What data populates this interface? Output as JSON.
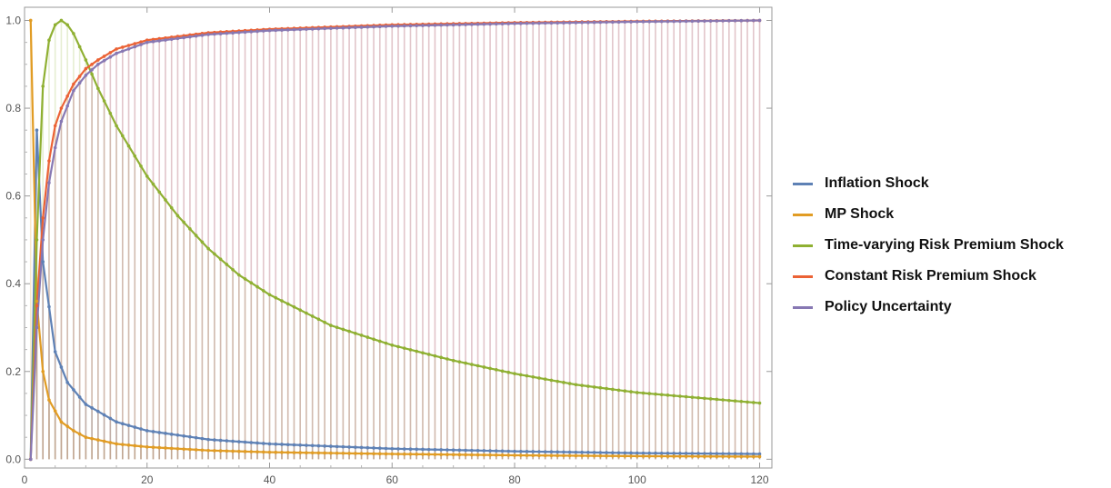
{
  "chart_data": {
    "type": "line",
    "title": "",
    "xlabel": "",
    "ylabel": "",
    "xlim": [
      0,
      122
    ],
    "ylim": [
      -0.02,
      1.03
    ],
    "x_ticks": [
      0,
      20,
      40,
      60,
      80,
      100,
      120
    ],
    "y_ticks": [
      0.0,
      0.2,
      0.4,
      0.6,
      0.8,
      1.0
    ],
    "x_tick_labels": [
      "0",
      "20",
      "40",
      "60",
      "80",
      "100",
      "120"
    ],
    "y_tick_labels": [
      "0.0",
      "0.2",
      "0.4",
      "0.6",
      "0.8",
      "1.0"
    ],
    "grid": false,
    "frame": true,
    "filling": "drop lines to 0 at every integer x",
    "legend_position": "right",
    "x": [
      1,
      120
    ],
    "series": [
      {
        "name": "Inflation Shock",
        "color": "#5e81b5",
        "points": [
          [
            1,
            0.0
          ],
          [
            2,
            0.75
          ],
          [
            3,
            0.45
          ],
          [
            5,
            0.245
          ],
          [
            7,
            0.175
          ],
          [
            10,
            0.125
          ],
          [
            15,
            0.085
          ],
          [
            20,
            0.065
          ],
          [
            30,
            0.045
          ],
          [
            40,
            0.035
          ],
          [
            60,
            0.024
          ],
          [
            80,
            0.018
          ],
          [
            100,
            0.014
          ],
          [
            120,
            0.012
          ]
        ]
      },
      {
        "name": "MP Shock",
        "color": "#e19c24",
        "points": [
          [
            1,
            1.0
          ],
          [
            2,
            0.36
          ],
          [
            3,
            0.2
          ],
          [
            4,
            0.135
          ],
          [
            6,
            0.085
          ],
          [
            8,
            0.065
          ],
          [
            10,
            0.05
          ],
          [
            15,
            0.035
          ],
          [
            20,
            0.028
          ],
          [
            30,
            0.02
          ],
          [
            40,
            0.016
          ],
          [
            60,
            0.012
          ],
          [
            80,
            0.009
          ],
          [
            100,
            0.007
          ],
          [
            120,
            0.006
          ]
        ]
      },
      {
        "name": "Time-varying Risk Premium Shock",
        "color": "#8fb032",
        "points": [
          [
            1,
            0.0
          ],
          [
            2,
            0.5
          ],
          [
            3,
            0.85
          ],
          [
            4,
            0.955
          ],
          [
            5,
            0.99
          ],
          [
            6,
            1.0
          ],
          [
            7,
            0.99
          ],
          [
            8,
            0.97
          ],
          [
            10,
            0.91
          ],
          [
            12,
            0.845
          ],
          [
            15,
            0.76
          ],
          [
            20,
            0.645
          ],
          [
            25,
            0.555
          ],
          [
            30,
            0.48
          ],
          [
            35,
            0.42
          ],
          [
            40,
            0.375
          ],
          [
            50,
            0.305
          ],
          [
            60,
            0.26
          ],
          [
            70,
            0.225
          ],
          [
            80,
            0.195
          ],
          [
            90,
            0.17
          ],
          [
            100,
            0.152
          ],
          [
            110,
            0.14
          ],
          [
            120,
            0.128
          ]
        ]
      },
      {
        "name": "Constant Risk Premium Shock",
        "color": "#eb6235",
        "points": [
          [
            1,
            0.0
          ],
          [
            2,
            0.35
          ],
          [
            3,
            0.55
          ],
          [
            4,
            0.68
          ],
          [
            5,
            0.76
          ],
          [
            6,
            0.8
          ],
          [
            8,
            0.855
          ],
          [
            10,
            0.89
          ],
          [
            12,
            0.91
          ],
          [
            15,
            0.935
          ],
          [
            20,
            0.955
          ],
          [
            30,
            0.972
          ],
          [
            40,
            0.98
          ],
          [
            60,
            0.99
          ],
          [
            80,
            0.995
          ],
          [
            100,
            0.998
          ],
          [
            120,
            1.0
          ]
        ]
      },
      {
        "name": "Policy Uncertainty",
        "color": "#8778b3",
        "points": [
          [
            1,
            0.0
          ],
          [
            2,
            0.3
          ],
          [
            3,
            0.5
          ],
          [
            4,
            0.63
          ],
          [
            5,
            0.71
          ],
          [
            6,
            0.77
          ],
          [
            8,
            0.84
          ],
          [
            10,
            0.875
          ],
          [
            12,
            0.9
          ],
          [
            15,
            0.925
          ],
          [
            20,
            0.95
          ],
          [
            30,
            0.968
          ],
          [
            40,
            0.977
          ],
          [
            60,
            0.987
          ],
          [
            80,
            0.993
          ],
          [
            100,
            0.997
          ],
          [
            120,
            1.0
          ]
        ]
      }
    ]
  }
}
